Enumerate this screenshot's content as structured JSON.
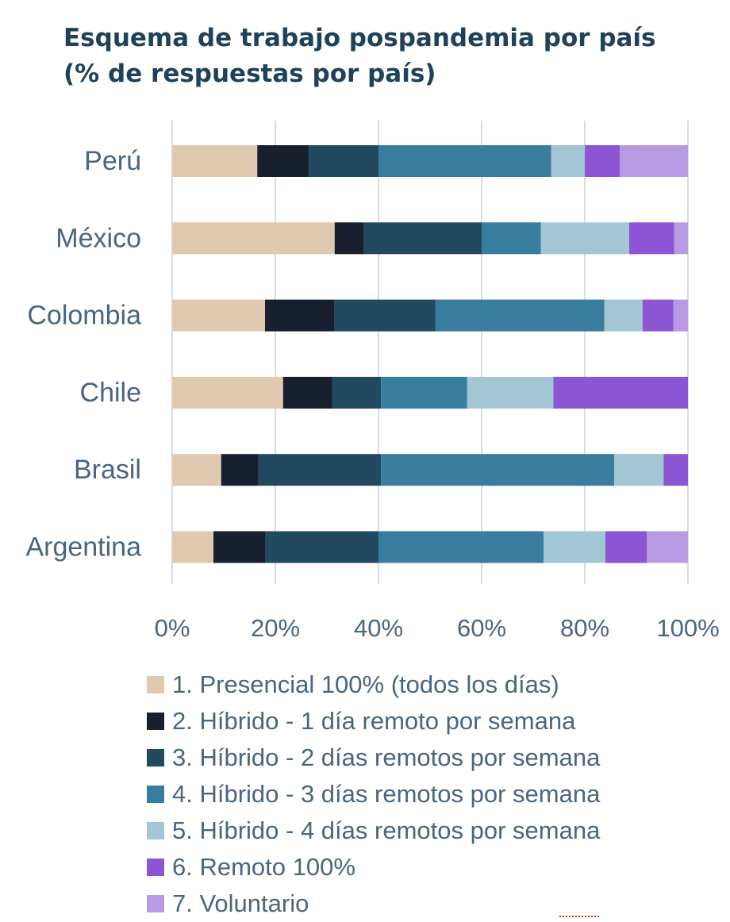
{
  "title": {
    "line1": "Esquema de trabajo pospandemia por país",
    "line2": "(% de respuestas por país)"
  },
  "chart_data": {
    "type": "bar",
    "orientation": "horizontal",
    "stacked": true,
    "categories": [
      "Perú",
      "México",
      "Colombia",
      "Chile",
      "Brasil",
      "Argentina"
    ],
    "xlim": [
      0,
      100
    ],
    "xticks": [
      "0%",
      "20%",
      "40%",
      "60%",
      "80%",
      "100%"
    ],
    "grid": true,
    "legend_position": "bottom",
    "series": [
      {
        "name": "1. Presencial 100% (todos los días)",
        "color": "#dfc9b1",
        "values": [
          16.5,
          31.5,
          18,
          21.5,
          9.5,
          8
        ]
      },
      {
        "name": "2. Híbrido - 1 día remoto por semana",
        "color": "#182030",
        "values": [
          10,
          5.7,
          13.5,
          9.5,
          7.2,
          10
        ]
      },
      {
        "name": "3. Híbrido - 2 días remotos por semana",
        "color": "#214a61",
        "values": [
          13.5,
          22.8,
          19.5,
          9.5,
          23.8,
          22
        ]
      },
      {
        "name": "4. Híbrido - 3 días remotos por semana",
        "color": "#387c9e",
        "values": [
          33.5,
          11.5,
          32.8,
          16.7,
          45.2,
          32
        ]
      },
      {
        "name": "5. Híbrido - 4 días remotos por semana",
        "color": "#a3c6d5",
        "values": [
          6.5,
          17.1,
          7.4,
          16.7,
          9.6,
          12
        ]
      },
      {
        "name": "6. Remoto 100%",
        "color": "#8b55d4",
        "values": [
          6.8,
          8.7,
          6,
          26.1,
          4.7,
          8
        ]
      },
      {
        "name": "7. Voluntario",
        "color": "#b89ae3",
        "values": [
          13.2,
          2.7,
          2.8,
          0,
          0,
          8
        ]
      }
    ]
  }
}
